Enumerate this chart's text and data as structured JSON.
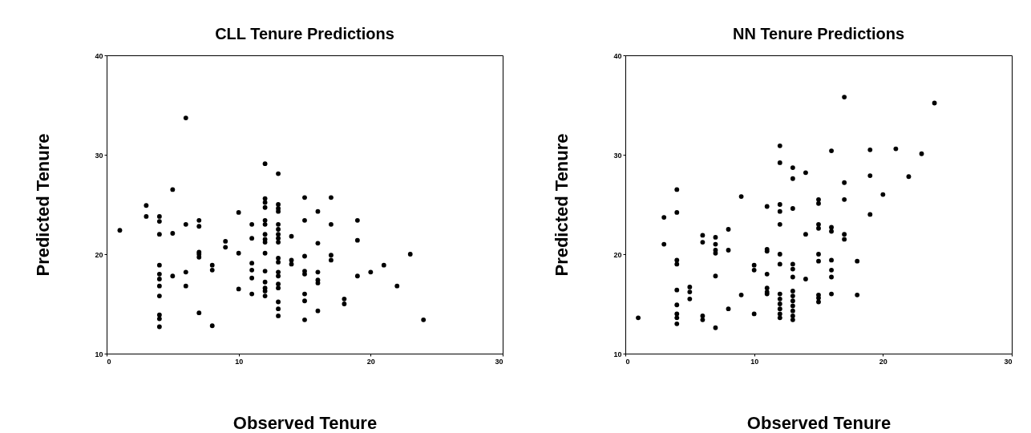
{
  "chart_data": [
    {
      "type": "scatter",
      "title": "CLL Tenure Predictions",
      "xlabel": "Observed Tenure",
      "ylabel": "Predicted Tenure",
      "color": "#000000",
      "marker": "circle",
      "x": [
        1,
        3,
        3,
        4,
        4,
        4,
        4,
        4,
        4,
        4,
        4,
        4,
        4,
        4,
        5,
        5,
        5,
        6,
        6,
        6,
        6,
        7,
        7,
        7,
        7,
        7,
        7,
        8,
        8,
        8,
        9,
        9,
        10,
        10,
        10,
        11,
        11,
        11,
        11,
        11,
        11,
        12,
        12,
        12,
        12,
        12,
        12,
        12,
        12,
        12,
        12,
        12,
        12,
        12,
        12,
        12,
        13,
        13,
        13,
        13,
        13,
        13,
        13,
        13,
        13,
        13,
        13,
        13,
        13,
        13,
        13,
        13,
        13,
        13,
        14,
        14,
        14,
        15,
        15,
        15,
        15,
        15,
        15,
        15,
        15,
        16,
        16,
        16,
        16,
        16,
        16,
        17,
        17,
        17,
        17,
        18,
        18,
        19,
        19,
        19,
        20,
        21,
        22,
        23,
        24
      ],
      "values": [
        22.4,
        24.9,
        23.8,
        23.8,
        23.3,
        22.0,
        18.9,
        18.0,
        17.5,
        16.8,
        15.8,
        13.9,
        13.5,
        12.7,
        26.5,
        22.1,
        17.8,
        33.7,
        23.0,
        18.2,
        16.8,
        23.4,
        22.8,
        20.2,
        20.0,
        19.7,
        14.1,
        18.9,
        18.4,
        12.8,
        21.3,
        20.7,
        24.2,
        20.1,
        16.5,
        23.0,
        21.6,
        19.1,
        18.4,
        17.6,
        16.0,
        29.1,
        25.6,
        25.2,
        24.7,
        23.4,
        23.0,
        22.0,
        21.5,
        21.2,
        20.1,
        18.3,
        17.2,
        16.6,
        16.3,
        15.8,
        28.1,
        25.0,
        24.6,
        24.3,
        23.0,
        22.5,
        22.0,
        21.6,
        21.2,
        19.6,
        19.2,
        18.2,
        17.8,
        17.0,
        16.6,
        15.2,
        14.5,
        13.8,
        21.8,
        19.4,
        19.0,
        25.7,
        23.4,
        19.8,
        18.3,
        18.0,
        16.0,
        15.3,
        13.4,
        24.3,
        21.1,
        18.2,
        17.4,
        17.1,
        14.3,
        25.7,
        23.0,
        19.9,
        19.4,
        15.5,
        15.0,
        23.4,
        21.4,
        17.8,
        18.2,
        18.9,
        16.8,
        20.0,
        13.4
      ],
      "xlim": [
        0,
        30
      ],
      "xticks": [
        0,
        10,
        20,
        30
      ],
      "ylim": [
        10,
        40
      ],
      "yticks": [
        10,
        20,
        30,
        40
      ]
    },
    {
      "type": "scatter",
      "title": "NN Tenure Predictions",
      "xlabel": "Observed Tenure",
      "ylabel": "Predicted Tenure",
      "color": "#000000",
      "marker": "circle",
      "x": [
        1,
        3,
        3,
        4,
        4,
        4,
        4,
        4,
        4,
        4,
        4,
        4,
        5,
        5,
        5,
        6,
        6,
        6,
        6,
        7,
        7,
        7,
        7,
        7,
        7,
        8,
        8,
        8,
        9,
        9,
        10,
        10,
        10,
        11,
        11,
        11,
        11,
        11,
        11,
        11,
        12,
        12,
        12,
        12,
        12,
        12,
        12,
        12,
        12,
        12,
        12,
        12,
        12,
        13,
        13,
        13,
        13,
        13,
        13,
        13,
        13,
        13,
        13,
        13,
        13,
        13,
        14,
        14,
        14,
        15,
        15,
        15,
        15,
        15,
        15,
        15,
        15,
        15,
        16,
        16,
        16,
        16,
        16,
        16,
        16,
        17,
        17,
        17,
        17,
        17,
        18,
        18,
        19,
        19,
        19,
        20,
        21,
        22,
        23,
        24
      ],
      "values": [
        13.6,
        23.7,
        21.0,
        26.5,
        24.2,
        19.4,
        19.0,
        16.4,
        14.9,
        14.0,
        13.6,
        13.0,
        16.7,
        16.2,
        15.5,
        21.9,
        21.2,
        13.8,
        13.4,
        21.7,
        21.0,
        20.4,
        20.1,
        17.8,
        12.6,
        22.5,
        20.4,
        14.5,
        25.8,
        15.9,
        18.9,
        18.4,
        14.0,
        24.8,
        20.5,
        20.3,
        18.0,
        16.6,
        16.2,
        16.0,
        30.9,
        29.2,
        25.0,
        24.3,
        23.0,
        20.0,
        19.0,
        16.0,
        15.5,
        15.0,
        14.5,
        14.0,
        13.6,
        28.7,
        27.6,
        24.6,
        19.0,
        18.5,
        17.7,
        16.3,
        15.8,
        15.3,
        14.8,
        14.3,
        13.8,
        13.4,
        28.2,
        22.0,
        17.5,
        25.5,
        25.1,
        23.0,
        22.6,
        20.0,
        19.3,
        15.9,
        15.6,
        15.2,
        30.4,
        22.7,
        22.3,
        19.4,
        18.4,
        17.7,
        16.0,
        35.8,
        27.2,
        25.5,
        22.0,
        21.5,
        19.3,
        15.9,
        30.5,
        27.9,
        24.0,
        26.0,
        30.6,
        27.8,
        30.1,
        35.2
      ],
      "xlim": [
        0,
        30
      ],
      "xticks": [
        0,
        10,
        20,
        30
      ],
      "ylim": [
        10,
        40
      ],
      "yticks": [
        10,
        20,
        30,
        40
      ]
    }
  ]
}
